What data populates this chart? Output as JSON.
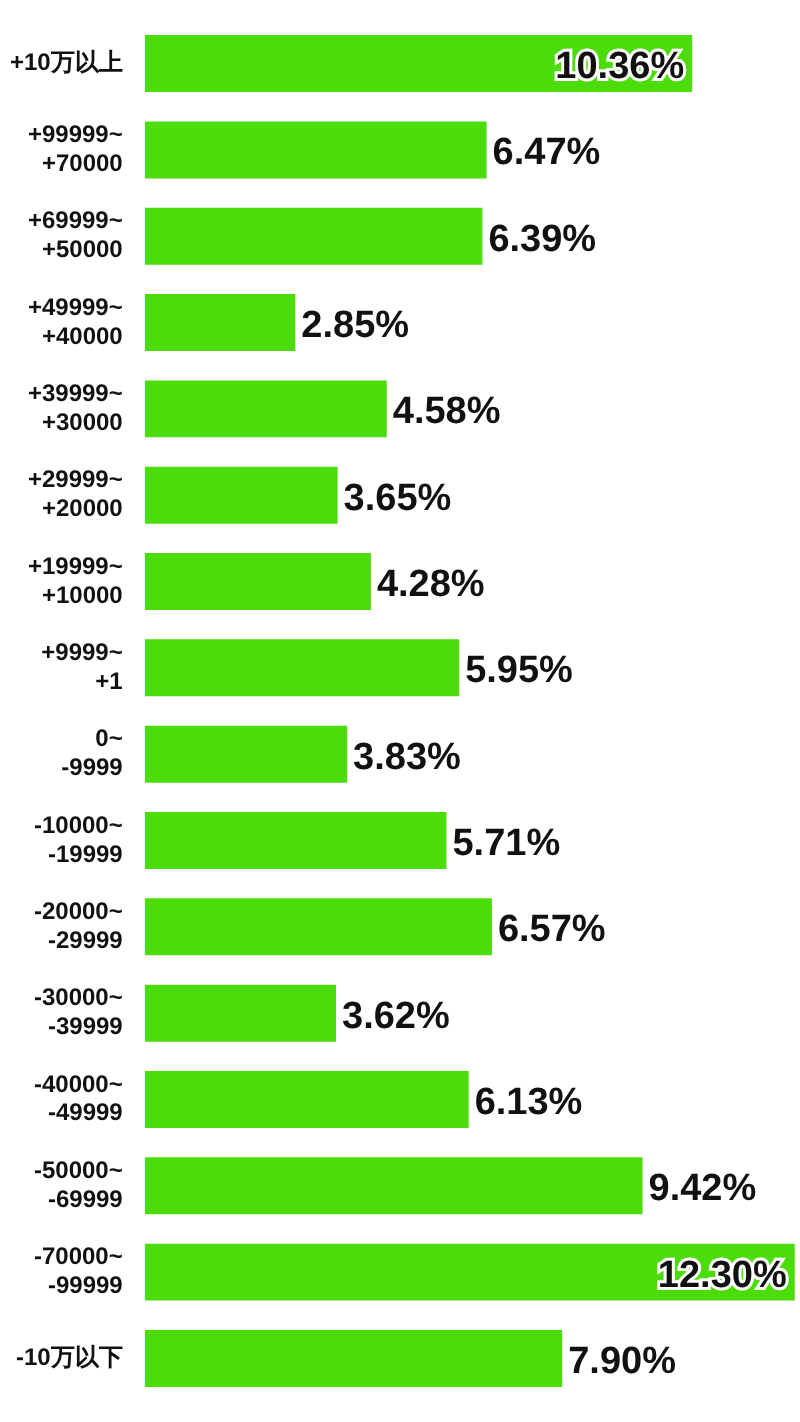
{
  "chart_data": {
    "type": "bar",
    "orientation": "horizontal",
    "categories": [
      "+10万以上",
      "+99999~\n+70000",
      "+69999~\n+50000",
      "+49999~\n+40000",
      "+39999~\n+30000",
      "+29999~\n+20000",
      "+19999~\n+10000",
      "+9999~\n+1",
      "0~\n-9999",
      "-10000~\n-19999",
      "-20000~\n-29999",
      "-30000~\n-39999",
      "-40000~\n-49999",
      "-50000~\n-69999",
      "-70000~\n-99999",
      "-10万以下"
    ],
    "values": [
      10.36,
      6.47,
      6.39,
      2.85,
      4.58,
      3.65,
      4.28,
      5.95,
      3.83,
      5.71,
      6.57,
      3.62,
      6.13,
      9.42,
      12.3,
      7.9
    ],
    "value_labels": [
      "10.36%",
      "6.47%",
      "6.39%",
      "2.85%",
      "4.58%",
      "3.65%",
      "4.28%",
      "5.95%",
      "3.83%",
      "5.71%",
      "6.57%",
      "3.62%",
      "6.13%",
      "9.42%",
      "12.30%",
      "7.90%"
    ],
    "color": "#4cdc0a",
    "xlim": [
      0,
      12.4
    ],
    "tick_labels": "y"
  }
}
